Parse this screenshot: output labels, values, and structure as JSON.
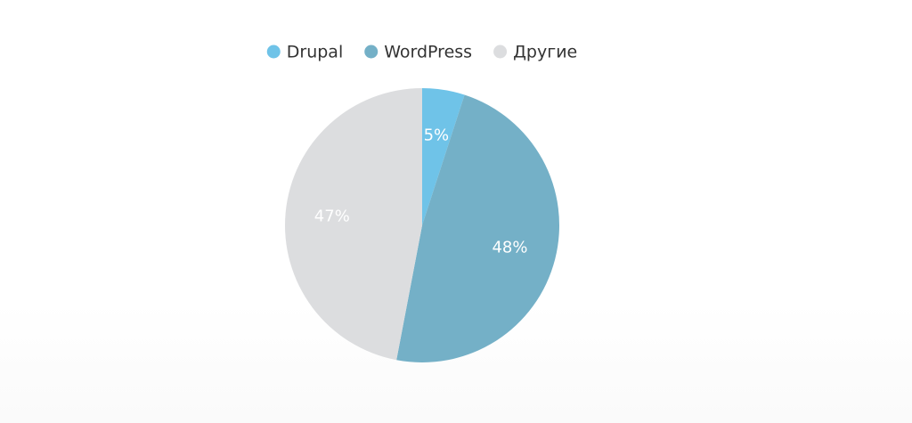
{
  "chart_data": {
    "type": "pie",
    "categories": [
      "Drupal",
      "WordPress",
      "Другие"
    ],
    "values": [
      5,
      48,
      47
    ],
    "value_labels": [
      "5%",
      "48%",
      "47%"
    ],
    "colors": [
      "#6fc3e8",
      "#74b0c7",
      "#dcdddf"
    ]
  }
}
